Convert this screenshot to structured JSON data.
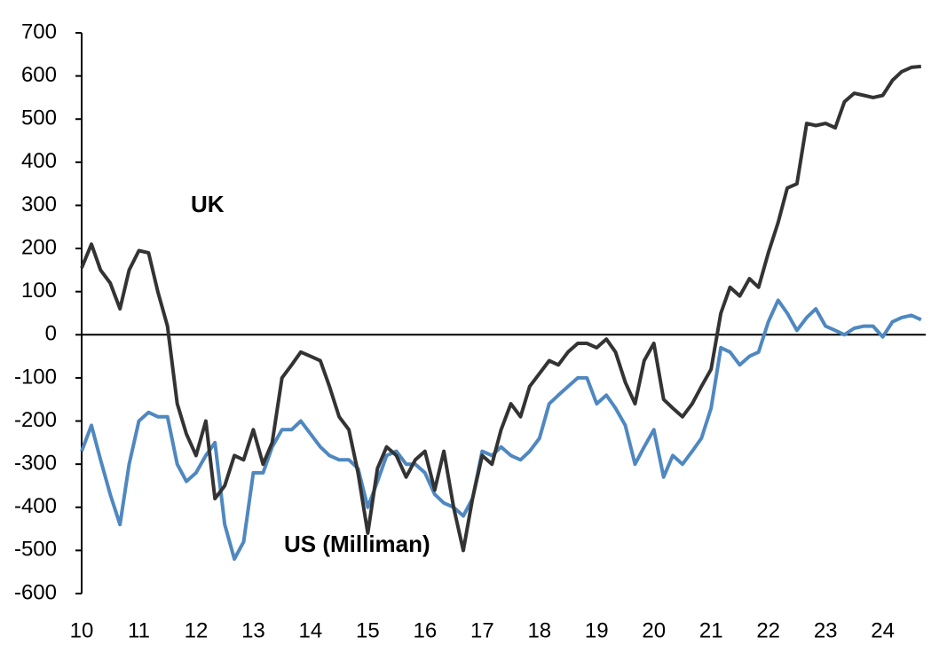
{
  "chart_data": {
    "type": "line",
    "x": [
      10,
      10.17,
      10.33,
      10.5,
      10.67,
      10.83,
      11,
      11.17,
      11.33,
      11.5,
      11.67,
      11.83,
      12,
      12.17,
      12.33,
      12.5,
      12.67,
      12.83,
      13,
      13.17,
      13.33,
      13.5,
      13.67,
      13.83,
      14,
      14.17,
      14.33,
      14.5,
      14.67,
      14.83,
      15,
      15.17,
      15.33,
      15.5,
      15.67,
      15.83,
      16,
      16.17,
      16.33,
      16.5,
      16.67,
      16.83,
      17,
      17.17,
      17.33,
      17.5,
      17.67,
      17.83,
      18,
      18.17,
      18.33,
      18.5,
      18.67,
      18.83,
      19,
      19.17,
      19.33,
      19.5,
      19.67,
      19.83,
      20,
      20.17,
      20.33,
      20.5,
      20.67,
      20.83,
      21,
      21.17,
      21.33,
      21.5,
      21.67,
      21.83,
      22,
      22.17,
      22.33,
      22.5,
      22.67,
      22.83,
      23,
      23.17,
      23.33,
      23.5,
      23.67,
      23.83,
      24,
      24.17,
      24.33,
      24.5,
      24.67
    ],
    "series": [
      {
        "name": "UK",
        "color": "#333333",
        "values": [
          155,
          210,
          150,
          120,
          60,
          150,
          195,
          190,
          100,
          20,
          -160,
          -230,
          -280,
          -200,
          -380,
          -350,
          -280,
          -290,
          -220,
          -300,
          -250,
          -100,
          -70,
          -40,
          -50,
          -60,
          -120,
          -190,
          -220,
          -320,
          -460,
          -310,
          -260,
          -280,
          -330,
          -290,
          -270,
          -360,
          -270,
          -400,
          -500,
          -380,
          -280,
          -300,
          -220,
          -160,
          -190,
          -120,
          -90,
          -60,
          -70,
          -40,
          -20,
          -20,
          -30,
          -10,
          -40,
          -110,
          -160,
          -60,
          -20,
          -150,
          -170,
          -190,
          -160,
          -120,
          -80,
          50,
          110,
          90,
          130,
          110,
          190,
          260,
          340,
          350,
          490,
          485,
          490,
          480,
          540,
          560,
          555,
          550,
          555,
          590,
          610,
          620,
          622
        ]
      },
      {
        "name": "US (Milliman)",
        "color": "#4f88c0",
        "values": [
          -270,
          -210,
          -290,
          -370,
          -440,
          -300,
          -200,
          -180,
          -190,
          -190,
          -300,
          -340,
          -320,
          -280,
          -250,
          -440,
          -520,
          -480,
          -320,
          -320,
          -260,
          -220,
          -220,
          -200,
          -230,
          -260,
          -280,
          -290,
          -290,
          -310,
          -400,
          -340,
          -280,
          -270,
          -300,
          -300,
          -320,
          -370,
          -390,
          -400,
          -420,
          -380,
          -270,
          -280,
          -260,
          -280,
          -290,
          -270,
          -240,
          -160,
          -140,
          -120,
          -100,
          -100,
          -160,
          -140,
          -170,
          -210,
          -300,
          -260,
          -220,
          -330,
          -280,
          -300,
          -270,
          -240,
          -170,
          -30,
          -40,
          -70,
          -50,
          -40,
          30,
          80,
          50,
          10,
          40,
          60,
          20,
          10,
          0,
          15,
          20,
          20,
          -5,
          30,
          40,
          45,
          35
        ]
      }
    ],
    "xlim": [
      10,
      24.75
    ],
    "xticks": [
      10,
      11,
      12,
      13,
      14,
      15,
      16,
      17,
      18,
      19,
      20,
      21,
      22,
      23,
      24
    ],
    "ylim": [
      -600,
      700
    ],
    "yticks": [
      -600,
      -500,
      -400,
      -300,
      -200,
      -100,
      0,
      100,
      200,
      300,
      400,
      500,
      600,
      700
    ]
  }
}
